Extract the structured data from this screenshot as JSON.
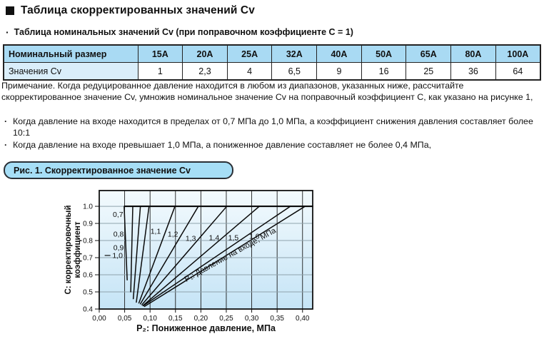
{
  "page": {
    "section_title": "Таблица скорректированных значений Cv",
    "subtitle": "Таблица номинальных значений Cv (при поправочном коэффициенте C = 1)"
  },
  "icons": {
    "section_marker": "■",
    "bullet": "·"
  },
  "table": {
    "header_label": "Номинальный размер",
    "sizes": [
      "15A",
      "20A",
      "25A",
      "32A",
      "40A",
      "50A",
      "65A",
      "80A",
      "100A"
    ],
    "row_label": "Значения Cv",
    "values": [
      "1",
      "2,3",
      "4",
      "6,5",
      "9",
      "16",
      "25",
      "36",
      "64"
    ]
  },
  "note": {
    "paragraph": "Примечание. Когда редуцированное давление находится в любом из диапазонов, указанных ниже, рассчитайте скорректированное значение Cv, умножив номинальное значение Cv на поправочный коэффициент C, как указано на рисунке 1,",
    "bullets": [
      "Когда давление на входе находится в пределах от 0,7 МПа до 1,0 МПа, а коэффициент снижения давления составляет более 10:1",
      "Когда давление на входе превышает 1,0 МПа, а пониженное давление составляет не более 0,4 МПа,"
    ]
  },
  "figure": {
    "caption": "Рис. 1. Скорректированное значение Cv"
  },
  "chart_data": {
    "type": "line",
    "title": "Рис. 1. Скорректированное значение Cv",
    "xlabel": "P₂: Пониженное давление, МПа",
    "ylabel_lines": [
      "С: корректировочный",
      "коэффициент"
    ],
    "xlim": [
      0,
      0.42
    ],
    "ylim": [
      0.4,
      1.092
    ],
    "grid": true,
    "x_ticks": [
      {
        "v": 0.0,
        "label": "0,00"
      },
      {
        "v": 0.05,
        "label": "0,05"
      },
      {
        "v": 0.1,
        "label": "0,10"
      },
      {
        "v": 0.15,
        "label": "0,15"
      },
      {
        "v": 0.2,
        "label": "0,20"
      },
      {
        "v": 0.25,
        "label": "0,25"
      },
      {
        "v": 0.3,
        "label": "0,30"
      },
      {
        "v": 0.35,
        "label": "0,35"
      },
      {
        "v": 0.4,
        "label": "0,40"
      }
    ],
    "y_ticks": [
      {
        "v": 1.0,
        "label": "1.0"
      },
      {
        "v": 0.9,
        "label": "0.9"
      },
      {
        "v": 0.8,
        "label": "0.8"
      },
      {
        "v": 0.7,
        "label": "0.7"
      },
      {
        "v": 0.6,
        "label": "0.6"
      },
      {
        "v": 0.5,
        "label": "0.5"
      },
      {
        "v": 0.4,
        "label": "0.4"
      }
    ],
    "ceiling_line": {
      "c": 1.0,
      "from": 0.049,
      "to": 0.421
    },
    "series": [
      {
        "p1": "0,7",
        "points": [
          [
            0.055,
            0.57
          ],
          [
            0.049,
            1.0
          ]
        ],
        "label_at": [
          0.037,
          0.952
        ]
      },
      {
        "p1": "0,8",
        "points": [
          [
            0.062,
            0.5
          ],
          [
            0.066,
            1.0
          ]
        ],
        "label_at": [
          0.038,
          0.838
        ]
      },
      {
        "p1": "0,9",
        "points": [
          [
            0.067,
            0.46
          ],
          [
            0.081,
            1.0
          ]
        ],
        "label_at": [
          0.038,
          0.758
        ]
      },
      {
        "p1": "1,0",
        "points": [
          [
            0.073,
            0.44
          ],
          [
            0.098,
            1.0
          ]
        ],
        "label_at": [
          0.036,
          0.713
        ],
        "dash_before_label": true
      },
      {
        "p1": "1,1",
        "points": [
          [
            0.078,
            0.435
          ],
          [
            0.149,
            1.0
          ]
        ],
        "label_at": [
          0.111,
          0.854
        ]
      },
      {
        "p1": "1,2",
        "points": [
          [
            0.081,
            0.43
          ],
          [
            0.195,
            1.0
          ]
        ],
        "label_at": [
          0.145,
          0.838
        ]
      },
      {
        "p1": "1,3",
        "points": [
          [
            0.084,
            0.425
          ],
          [
            0.251,
            1.0
          ]
        ],
        "label_at": [
          0.18,
          0.813
        ]
      },
      {
        "p1": "1,4",
        "points": [
          [
            0.086,
            0.42
          ],
          [
            0.315,
            1.0
          ]
        ],
        "label_at": [
          0.226,
          0.817
        ]
      },
      {
        "p1": "1,5",
        "points": [
          [
            0.087,
            0.42
          ],
          [
            0.376,
            1.0
          ]
        ],
        "label_at": [
          0.264,
          0.817
        ]
      },
      {
        "p1": "1,6",
        "points": [
          [
            0.089,
            0.415
          ],
          [
            0.405,
            1.0
          ]
        ],
        "label_at": [
          0.305,
          0.825
        ]
      }
    ],
    "annotation": {
      "text": "P₁: Давление на входе, МПа",
      "at": [
        0.26,
        0.704
      ],
      "angle": -29
    },
    "colors": {
      "plot_bg_top": "#f3fafd",
      "plot_bg_bottom": "#c5e4f6",
      "grid_vertical": "#1b1b1b",
      "grid_horizontal": "#8fa3ad",
      "curve": "#0a0a0a",
      "border": "#111111"
    }
  }
}
